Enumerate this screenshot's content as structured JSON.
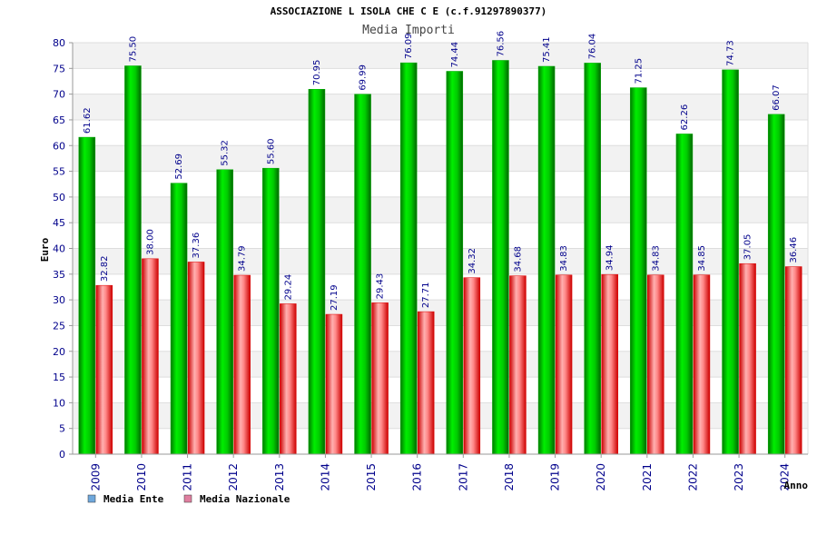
{
  "chart_data": {
    "type": "bar",
    "title": "ASSOCIAZIONE L ISOLA CHE C E (c.f.91297890377)",
    "subtitle": "Media Importi",
    "xlabel": "Anno",
    "ylabel": "Euro",
    "ylim": [
      0,
      80
    ],
    "ytick_step": 5,
    "grid": true,
    "legend_position": "bottom-left",
    "categories": [
      "2009",
      "2010",
      "2011",
      "2012",
      "2013",
      "2014",
      "2015",
      "2016",
      "2017",
      "2018",
      "2019",
      "2020",
      "2021",
      "2022",
      "2023",
      "2024"
    ],
    "series": [
      {
        "name": "Media Ente",
        "color": "#00aa00",
        "legend_color": "#6fa8dc",
        "values": [
          61.62,
          75.5,
          52.69,
          55.32,
          55.6,
          70.95,
          69.99,
          76.09,
          74.44,
          76.56,
          75.41,
          76.04,
          71.25,
          62.26,
          74.73,
          66.07
        ],
        "labels": [
          "61.62",
          "75.50",
          "52.69",
          "55.32",
          "55.60",
          "70.95",
          "69.99",
          "76.09",
          "74.44",
          "76.56",
          "75.41",
          "76.04",
          "71.25",
          "62.26",
          "74.73",
          "66.07"
        ]
      },
      {
        "name": "Media Nazionale",
        "color": "#dd0000",
        "legend_color": "#e07fa0",
        "values": [
          32.82,
          38.0,
          37.36,
          34.79,
          29.24,
          27.19,
          29.43,
          27.71,
          34.32,
          34.68,
          34.83,
          34.94,
          34.83,
          34.85,
          37.05,
          36.46
        ],
        "labels": [
          "32.82",
          "38.00",
          "37.36",
          "34.79",
          "29.24",
          "27.19",
          "29.43",
          "27.71",
          "34.32",
          "34.68",
          "34.83",
          "34.94",
          "34.83",
          "34.85",
          "37.05",
          "36.46"
        ]
      }
    ]
  }
}
